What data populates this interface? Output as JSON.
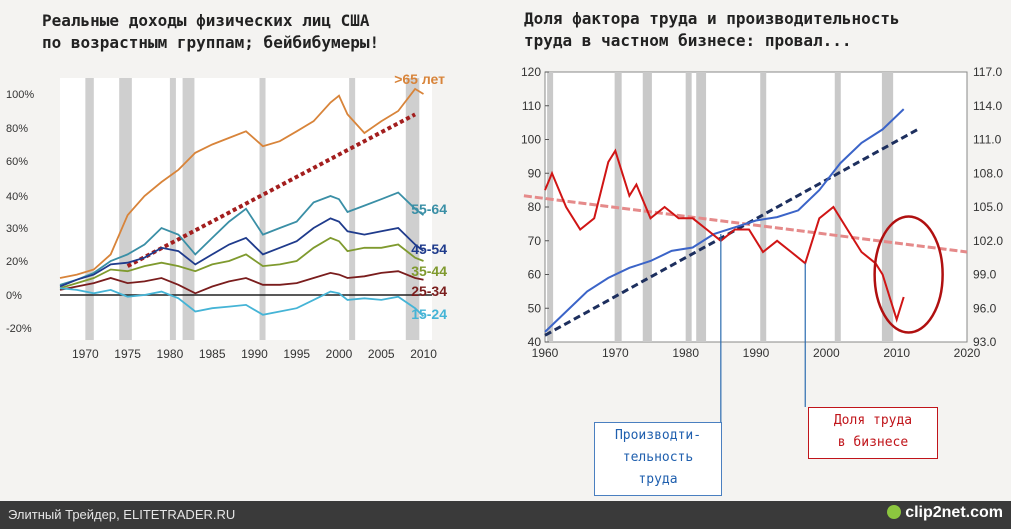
{
  "left_title": "Реальные доходы физических лиц США\nпо возрастным группам; бейбибумеры!",
  "right_title": "Доля фактора труда и производительность\nтруда в частном бизнесе: провал...",
  "footer_text": "Элитный Трейдер, ELITETRADER.RU",
  "logo_text": "clip2net.com",
  "prod_label": "Производти-\nтельность\nтруда",
  "share_label": "Доля труда\nв бизнесе",
  "chart_data": [
    {
      "type": "line",
      "xlim": [
        1967,
        2011
      ],
      "ylim": [
        -25,
        105
      ],
      "x_ticks": [
        "1970",
        "1975",
        "1980",
        "1985",
        "1990",
        "1995",
        "2000",
        "2005",
        "2010"
      ],
      "y_ticks": [
        "100%",
        "80%",
        "60%",
        "40%",
        "30%",
        "20%",
        "0%",
        "-20%"
      ],
      "recessions": [
        [
          1970,
          1971
        ],
        [
          1974,
          1975.5
        ],
        [
          1980,
          1980.6
        ],
        [
          1981.5,
          1982.9
        ],
        [
          1990.6,
          1991.3
        ],
        [
          2001.2,
          2001.9
        ],
        [
          2007.9,
          2009.5
        ]
      ],
      "series": [
        {
          "name": ">65 лет",
          "color": "#d8843a",
          "x": [
            1967,
            1969,
            1971,
            1973,
            1975,
            1977,
            1979,
            1981,
            1983,
            1985,
            1987,
            1989,
            1991,
            1993,
            1995,
            1997,
            1999,
            2000,
            2001,
            2003,
            2005,
            2007,
            2009,
            2010
          ],
          "y": [
            10,
            12,
            15,
            22,
            34,
            40,
            48,
            55,
            65,
            70,
            74,
            78,
            69,
            72,
            78,
            84,
            95,
            99,
            88,
            77,
            84,
            90,
            103,
            100
          ]
        },
        {
          "name": "55-64",
          "color": "#3a8fa6",
          "x": [
            1967,
            1969,
            1971,
            1973,
            1975,
            1977,
            1979,
            1981,
            1983,
            1985,
            1987,
            1989,
            1991,
            1993,
            1995,
            1997,
            1999,
            2000,
            2001,
            2003,
            2005,
            2007,
            2009,
            2010
          ],
          "y": [
            6,
            9,
            13,
            20,
            22,
            25,
            30,
            28,
            22,
            27,
            32,
            36,
            28,
            30,
            32,
            38,
            40,
            39,
            35,
            37,
            39,
            42,
            36,
            34
          ]
        },
        {
          "name": "45-54",
          "color": "#1f3b8c",
          "x": [
            1967,
            1969,
            1971,
            1973,
            1975,
            1977,
            1979,
            1981,
            1983,
            1985,
            1987,
            1989,
            1991,
            1993,
            1995,
            1997,
            1999,
            2000,
            2001,
            2003,
            2005,
            2007,
            2009,
            2010
          ],
          "y": [
            5,
            9,
            12,
            18,
            19,
            21,
            24,
            23,
            18,
            22,
            25,
            27,
            22,
            24,
            26,
            30,
            33,
            32,
            29,
            28,
            29,
            30,
            25,
            23
          ]
        },
        {
          "name": "35-44",
          "color": "#7f9a2e",
          "x": [
            1967,
            1969,
            1971,
            1973,
            1975,
            1977,
            1979,
            1981,
            1983,
            1985,
            1987,
            1989,
            1991,
            1993,
            1995,
            1997,
            1999,
            2000,
            2001,
            2003,
            2005,
            2007,
            2009,
            2010
          ],
          "y": [
            4,
            7,
            10,
            15,
            14,
            17,
            19,
            17,
            14,
            18,
            20,
            22,
            17,
            18,
            20,
            24,
            27,
            26,
            23,
            24,
            24,
            25,
            21,
            20
          ]
        },
        {
          "name": "25-34",
          "color": "#7a1d1d",
          "x": [
            1967,
            1969,
            1971,
            1973,
            1975,
            1977,
            1979,
            1981,
            1983,
            1985,
            1987,
            1989,
            1991,
            1993,
            1995,
            1997,
            1999,
            2000,
            2001,
            2003,
            2005,
            2007,
            2009,
            2010
          ],
          "y": [
            3,
            5,
            7,
            10,
            7,
            8,
            10,
            6,
            1,
            5,
            8,
            10,
            6,
            6,
            7,
            10,
            13,
            12,
            10,
            11,
            13,
            14,
            10,
            9
          ]
        },
        {
          "name": "15-24",
          "color": "#45b4d6",
          "x": [
            1967,
            1969,
            1971,
            1973,
            1975,
            1977,
            1979,
            1981,
            1983,
            1985,
            1987,
            1989,
            1991,
            1993,
            1995,
            1997,
            1999,
            2000,
            2001,
            2003,
            2005,
            2007,
            2009,
            2010
          ],
          "y": [
            4,
            3,
            1,
            3,
            -1,
            0,
            2,
            -2,
            -10,
            -8,
            -7,
            -6,
            -12,
            -10,
            -8,
            -3,
            2,
            1,
            -3,
            -2,
            -3,
            -1,
            -8,
            -13
          ]
        }
      ],
      "trend": {
        "x": [
          1975,
          2009
        ],
        "y": [
          17,
          88
        ],
        "color": "#a31e1e"
      }
    },
    {
      "type": "line",
      "xlim": [
        1960,
        2020
      ],
      "ylim_left": [
        40,
        120
      ],
      "ylim_right": [
        93,
        117
      ],
      "x_ticks": [
        "1960",
        "1970",
        "1980",
        "1990",
        "2000",
        "2010",
        "2020"
      ],
      "y_left_ticks": [
        "120",
        "110",
        "100",
        "90",
        "80",
        "70",
        "60",
        "50",
        "40"
      ],
      "y_right_ticks": [
        "117.0",
        "114.0",
        "111.0",
        "108.0",
        "105.0",
        "102.0",
        "99.0",
        "96.0",
        "93.0"
      ],
      "recessions": [
        [
          1960.3,
          1961.1
        ],
        [
          1969.9,
          1970.9
        ],
        [
          1973.9,
          1975.2
        ],
        [
          1980,
          1980.6
        ],
        [
          1981.5,
          1982.9
        ],
        [
          1990.6,
          1991.3
        ],
        [
          2001.2,
          2001.9
        ],
        [
          2007.9,
          2009.5
        ]
      ],
      "productivity": {
        "color": "#3b64c8",
        "x": [
          1960,
          1963,
          1966,
          1969,
          1972,
          1975,
          1978,
          1981,
          1984,
          1987,
          1990,
          1993,
          1996,
          1999,
          2002,
          2005,
          2008,
          2010,
          2011
        ],
        "y": [
          43,
          49,
          55,
          59,
          62,
          64,
          67,
          68,
          72,
          74,
          76,
          77,
          79,
          85,
          93,
          99,
          103,
          107,
          109
        ]
      },
      "labor_share": {
        "color": "#d01515",
        "x": [
          1960,
          1961,
          1963,
          1965,
          1967,
          1969,
          1970,
          1972,
          1973,
          1975,
          1977,
          1979,
          1981,
          1983,
          1985,
          1987,
          1989,
          1991,
          1993,
          1995,
          1997,
          1999,
          2001,
          2003,
          2005,
          2007,
          2008,
          2009,
          2010,
          2011
        ],
        "y": [
          106.5,
          108,
          105,
          103,
          104,
          109,
          110,
          106,
          107,
          104,
          105,
          104,
          104,
          103,
          102,
          103,
          103,
          101,
          102,
          101,
          100,
          104,
          105,
          103,
          101,
          100,
          99,
          97,
          95,
          97
        ]
      },
      "trend_productivity": {
        "x": [
          1960,
          2013
        ],
        "y": [
          42,
          103
        ],
        "color": "#1d2f5e"
      },
      "trend_share": {
        "x": [
          1957,
          2020
        ],
        "y": [
          106,
          101
        ],
        "color": "#e58a8a"
      }
    }
  ]
}
